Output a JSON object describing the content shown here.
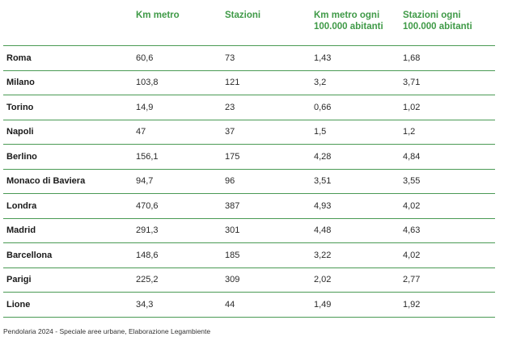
{
  "table": {
    "headers": [
      "",
      "Km metro",
      "Stazioni",
      "Km metro ogni\n100.000 abitanti",
      "Stazioni ogni\n100.000 abitanti"
    ],
    "header_lines": [
      [
        ""
      ],
      [
        "Km metro"
      ],
      [
        "Stazioni"
      ],
      [
        "Km metro ogni",
        "100.000 abitanti"
      ],
      [
        "Stazioni ogni",
        "100.000 abitanti"
      ]
    ],
    "rows": [
      [
        "Roma",
        "60,6",
        "73",
        "1,43",
        "1,68"
      ],
      [
        "Milano",
        "103,8",
        "121",
        "3,2",
        "3,71"
      ],
      [
        "Torino",
        "14,9",
        "23",
        "0,66",
        "1,02"
      ],
      [
        "Napoli",
        "47",
        "37",
        "1,5",
        "1,2"
      ],
      [
        "Berlino",
        "156,1",
        "175",
        "4,28",
        "4,84"
      ],
      [
        "Monaco di Baviera",
        "94,7",
        "96",
        "3,51",
        "3,55"
      ],
      [
        "Londra",
        "470,6",
        "387",
        "4,93",
        "4,02"
      ],
      [
        "Madrid",
        "291,3",
        "301",
        "4,48",
        "4,63"
      ],
      [
        "Barcellona",
        "148,6",
        "185",
        "3,22",
        "4,02"
      ],
      [
        "Parigi",
        "225,2",
        "309",
        "2,02",
        "2,77"
      ],
      [
        "Lione",
        "34,3",
        "44",
        "1,49",
        "1,92"
      ]
    ]
  },
  "caption": "Pendolaria 2024 - Speciale aree urbane, Elaborazione Legambiente",
  "colors": {
    "header_text": "#3f9a47",
    "rule": "#4a9a54"
  }
}
